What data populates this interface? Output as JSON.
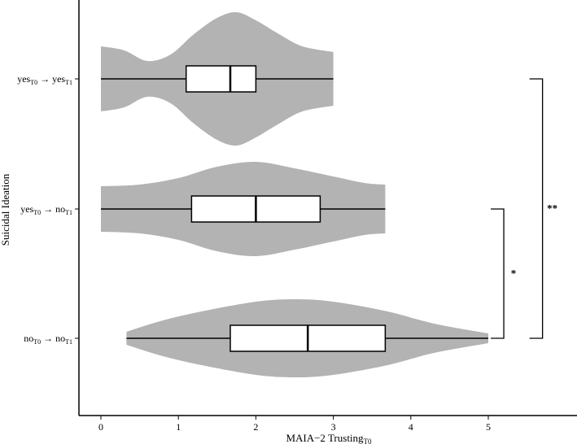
{
  "chart_data": {
    "type": "violin",
    "xlabel": {
      "main": "MAIA−2 Trusting",
      "sub": "T0"
    },
    "ylabel": "Suicidal Ideation",
    "xlim": [
      -0.3,
      6.2
    ],
    "xticks": [
      0,
      1,
      2,
      3,
      4,
      5
    ],
    "categories": [
      {
        "label": [
          [
            "yes",
            "T0"
          ],
          [
            " → "
          ],
          [
            "yes",
            "T1"
          ]
        ]
      },
      {
        "label": [
          [
            "yes",
            "T0"
          ],
          [
            " → "
          ],
          [
            "no",
            "T1"
          ]
        ]
      },
      {
        "label": [
          [
            "no",
            "T0"
          ],
          [
            " → "
          ],
          [
            "no",
            "T1"
          ]
        ]
      }
    ],
    "groups": [
      {
        "name": "yes_T0 -> yes_T1",
        "whisker_low": 0.0,
        "q1": 1.1,
        "median": 1.67,
        "q3": 2.0,
        "whisker_high": 3.0,
        "violin": [
          [
            0.0,
            0.4
          ],
          [
            0.3,
            0.35
          ],
          [
            0.6,
            0.22
          ],
          [
            0.9,
            0.3
          ],
          [
            1.2,
            0.55
          ],
          [
            1.5,
            0.75
          ],
          [
            1.75,
            0.82
          ],
          [
            2.0,
            0.72
          ],
          [
            2.3,
            0.55
          ],
          [
            2.6,
            0.4
          ],
          [
            3.0,
            0.33
          ]
        ]
      },
      {
        "name": "yes_T0 -> no_T1",
        "whisker_low": 0.0,
        "q1": 1.17,
        "median": 2.0,
        "q3": 2.83,
        "whisker_high": 3.67,
        "violin": [
          [
            0.0,
            0.28
          ],
          [
            0.5,
            0.3
          ],
          [
            1.0,
            0.38
          ],
          [
            1.5,
            0.52
          ],
          [
            2.0,
            0.58
          ],
          [
            2.5,
            0.5
          ],
          [
            3.0,
            0.4
          ],
          [
            3.4,
            0.32
          ],
          [
            3.67,
            0.3
          ]
        ]
      },
      {
        "name": "no_T0 -> no_T1",
        "whisker_low": 0.33,
        "q1": 1.67,
        "median": 2.67,
        "q3": 3.67,
        "whisker_high": 5.0,
        "violin": [
          [
            0.33,
            0.08
          ],
          [
            0.8,
            0.22
          ],
          [
            1.3,
            0.33
          ],
          [
            2.0,
            0.45
          ],
          [
            2.5,
            0.48
          ],
          [
            3.0,
            0.45
          ],
          [
            3.7,
            0.33
          ],
          [
            4.3,
            0.18
          ],
          [
            5.0,
            0.06
          ]
        ]
      }
    ],
    "significance": [
      {
        "from_group": 1,
        "to_group": 2,
        "label": "*",
        "x_value": 5.2
      },
      {
        "from_group": 0,
        "to_group": 2,
        "label": "**",
        "x_value": 5.7
      }
    ]
  }
}
